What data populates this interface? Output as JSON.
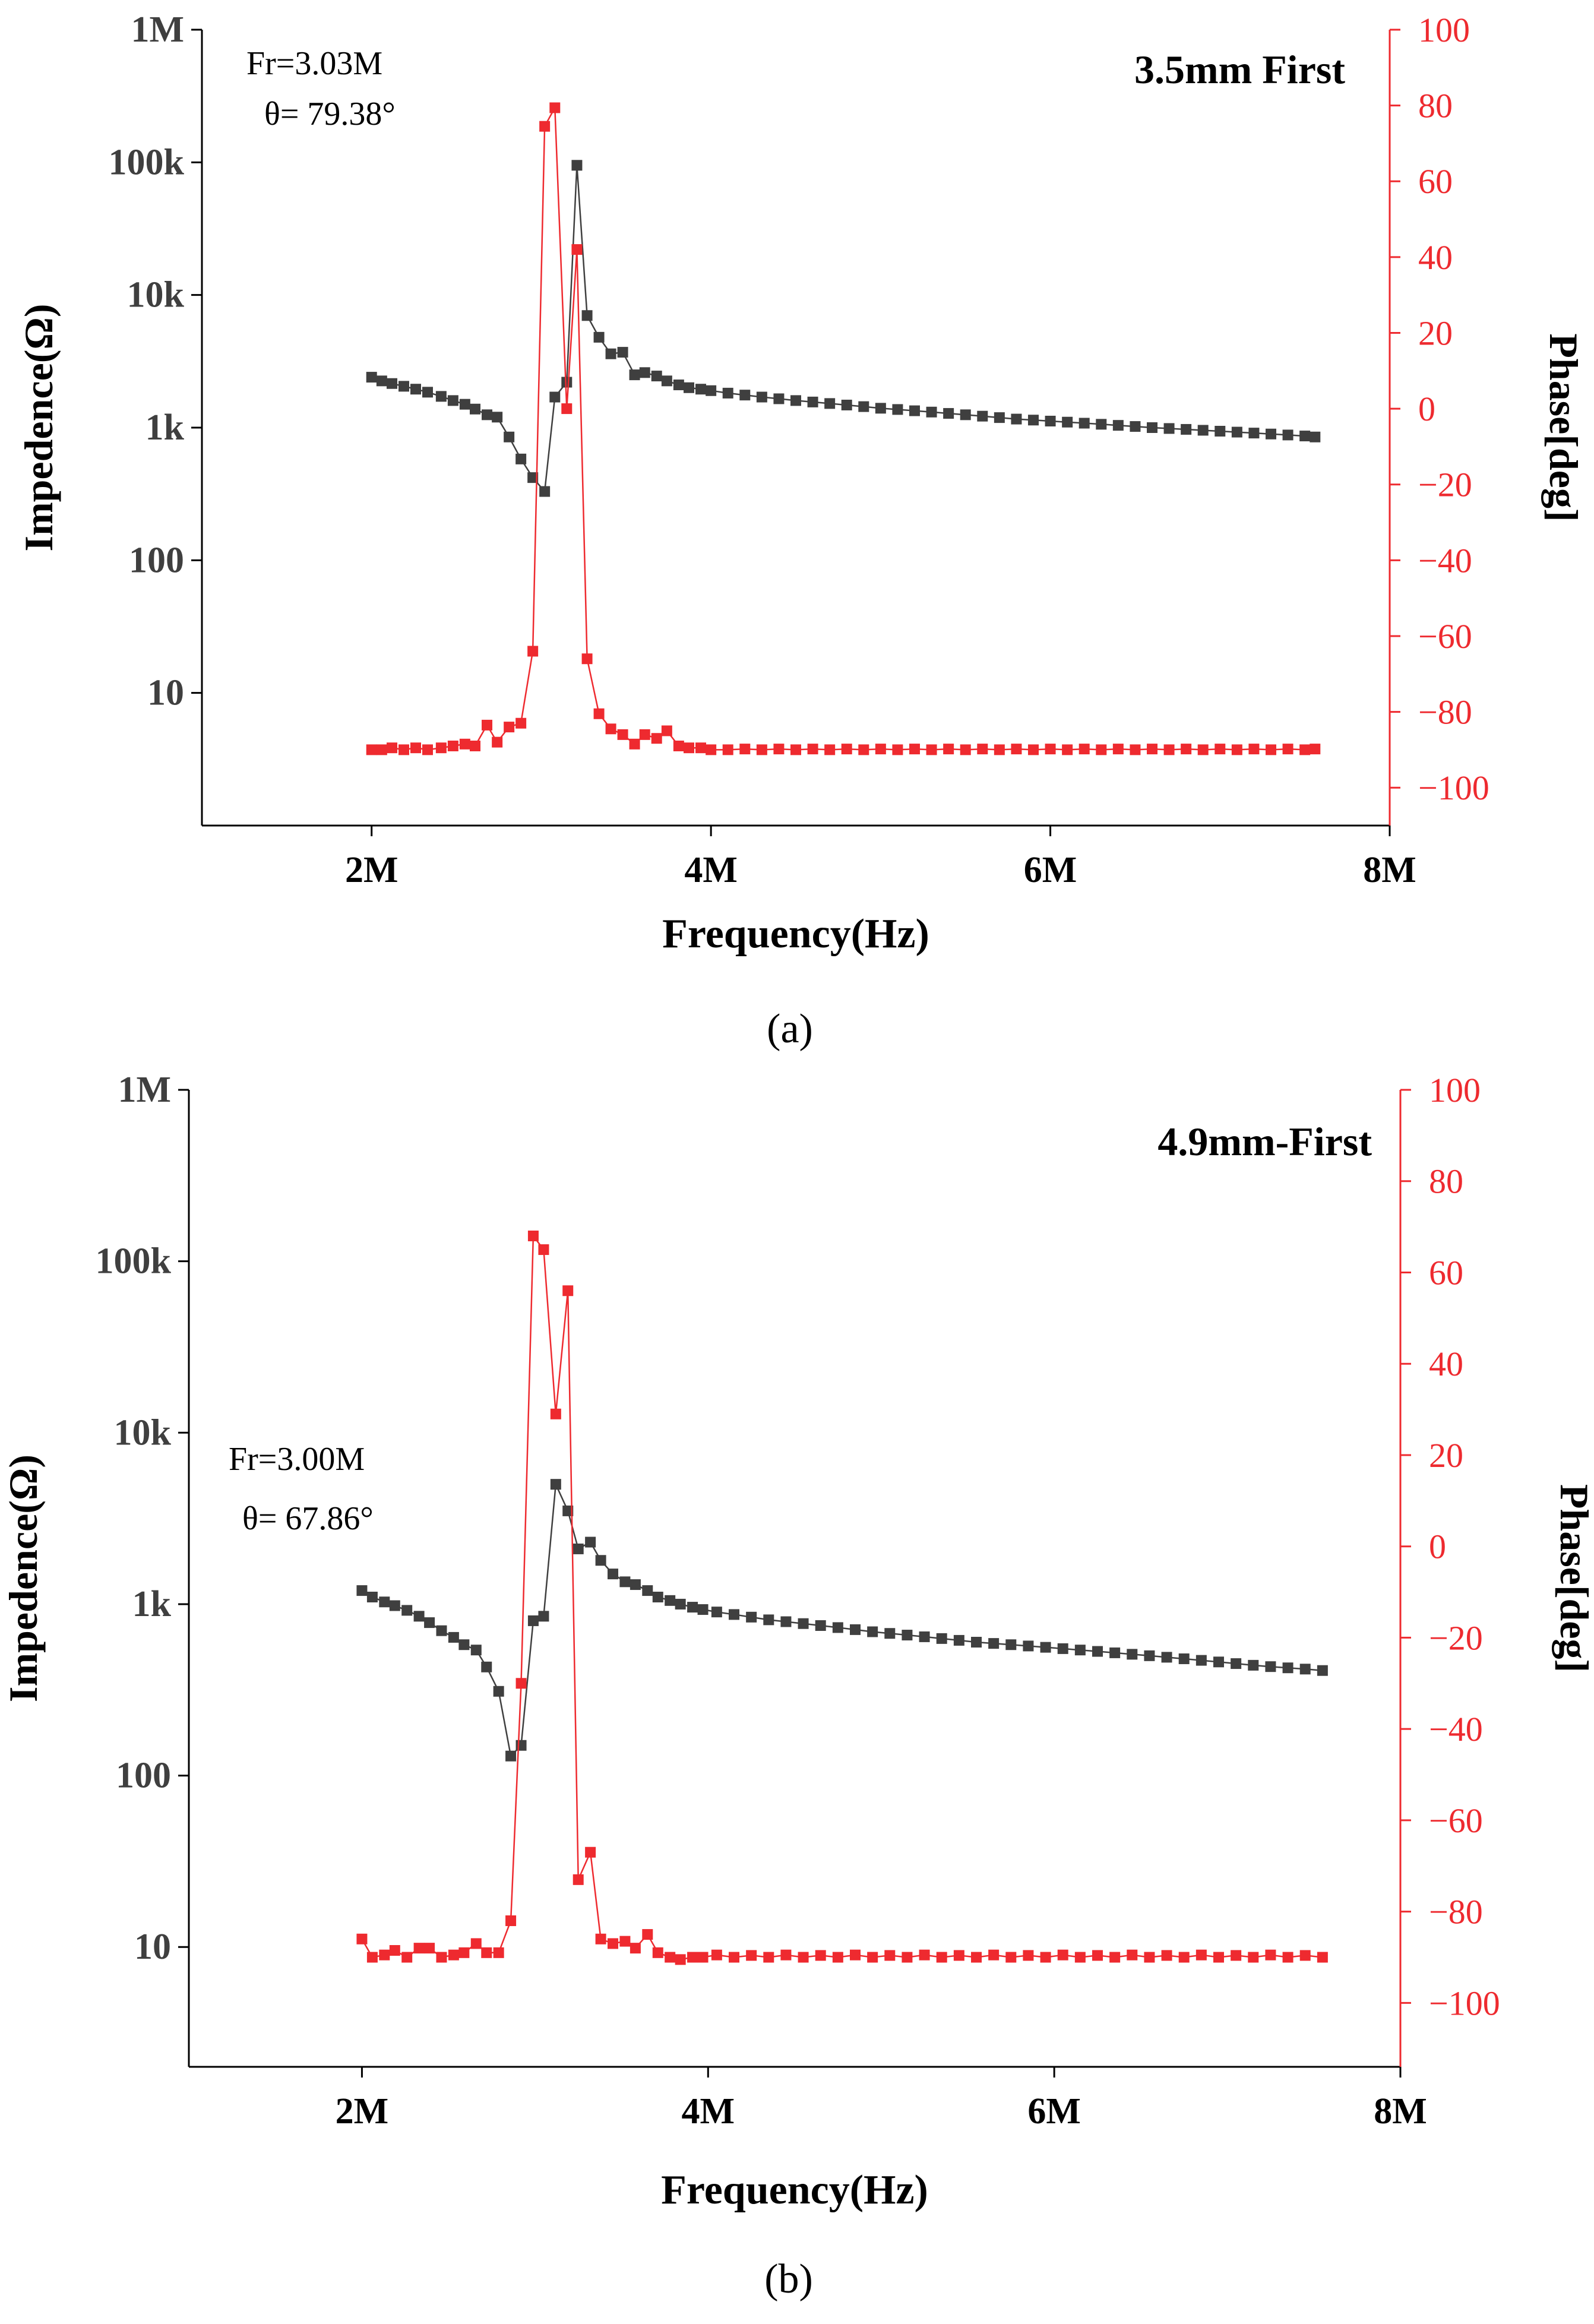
{
  "colors": {
    "impedance": "#3f3f3f",
    "phase": "#ee2a2f",
    "axis": "#000000"
  },
  "chart_data": [
    {
      "type": "line",
      "panel_label": "(a)",
      "title": "3.5mm First",
      "annotation": {
        "line1": "Fr=3.03M",
        "line2": "θ= 79.38°"
      },
      "xlabel": "Frequency(Hz)",
      "ylabel_left": "Impedence(Ω)",
      "ylabel_right": "Phase[deg]",
      "xlim": [
        1000000,
        8000000
      ],
      "x_ticks": [
        {
          "value": 2000000,
          "label": "2M"
        },
        {
          "value": 4000000,
          "label": "4M"
        },
        {
          "value": 6000000,
          "label": "6M"
        },
        {
          "value": 8000000,
          "label": "8M"
        }
      ],
      "y_left_scale": "log",
      "y_left_lim": [
        1,
        1000000
      ],
      "y_left_ticks": [
        {
          "value": 10,
          "label": "10"
        },
        {
          "value": 100,
          "label": "100"
        },
        {
          "value": 1000,
          "label": "1k"
        },
        {
          "value": 10000,
          "label": "10k"
        },
        {
          "value": 100000,
          "label": "100k"
        },
        {
          "value": 1000000,
          "label": "1M"
        }
      ],
      "y_right_lim": [
        -110,
        100
      ],
      "y_right_ticks": [
        {
          "value": 100,
          "label": "100"
        },
        {
          "value": 80,
          "label": "80"
        },
        {
          "value": 60,
          "label": "60"
        },
        {
          "value": 40,
          "label": "40"
        },
        {
          "value": 20,
          "label": "20"
        },
        {
          "value": 0,
          "label": "0"
        },
        {
          "value": -20,
          "label": "−20"
        },
        {
          "value": -40,
          "label": "−40"
        },
        {
          "value": -60,
          "label": "−60"
        },
        {
          "value": -80,
          "label": "−80"
        },
        {
          "value": -100,
          "label": "−100"
        }
      ],
      "series": [
        {
          "name": "Impedance",
          "axis": "left",
          "x": [
            2000000,
            2060000,
            2120000,
            2190000,
            2260000,
            2330000,
            2410000,
            2480000,
            2550000,
            2610000,
            2680000,
            2740000,
            2810000,
            2880000,
            2950000,
            3020000,
            3080000,
            3150000,
            3210000,
            3270000,
            3340000,
            3410000,
            3480000,
            3550000,
            3610000,
            3680000,
            3740000,
            3810000,
            3870000,
            3940000,
            4000000,
            4100000,
            4200000,
            4300000,
            4400000,
            4500000,
            4600000,
            4700000,
            4800000,
            4900000,
            5000000,
            5100000,
            5200000,
            5300000,
            5400000,
            5500000,
            5600000,
            5700000,
            5800000,
            5900000,
            6000000,
            6100000,
            6200000,
            6300000,
            6400000,
            6500000,
            6600000,
            6700000,
            6800000,
            6900000,
            7000000,
            7100000,
            7200000,
            7300000,
            7400000,
            7500000,
            7560000
          ],
          "values": [
            2400,
            2250,
            2150,
            2050,
            1950,
            1850,
            1720,
            1600,
            1500,
            1380,
            1250,
            1200,
            850,
            580,
            420,
            330,
            1700,
            2200,
            95000,
            7000,
            4800,
            3600,
            3700,
            2500,
            2600,
            2450,
            2250,
            2100,
            2000,
            1950,
            1900,
            1820,
            1760,
            1700,
            1650,
            1600,
            1560,
            1520,
            1480,
            1440,
            1400,
            1370,
            1340,
            1310,
            1280,
            1250,
            1220,
            1190,
            1160,
            1140,
            1120,
            1100,
            1080,
            1060,
            1040,
            1020,
            1000,
            985,
            970,
            955,
            940,
            925,
            910,
            895,
            880,
            865,
            850
          ]
        },
        {
          "name": "Phase",
          "axis": "right",
          "x": [
            2000000,
            2060000,
            2120000,
            2190000,
            2260000,
            2330000,
            2410000,
            2480000,
            2550000,
            2610000,
            2680000,
            2740000,
            2810000,
            2880000,
            2950000,
            3020000,
            3080000,
            3150000,
            3210000,
            3270000,
            3340000,
            3410000,
            3480000,
            3550000,
            3610000,
            3680000,
            3740000,
            3810000,
            3870000,
            3940000,
            4000000,
            4100000,
            4200000,
            4300000,
            4400000,
            4500000,
            4600000,
            4700000,
            4800000,
            4900000,
            5000000,
            5100000,
            5200000,
            5300000,
            5400000,
            5500000,
            5600000,
            5700000,
            5800000,
            5900000,
            6000000,
            6100000,
            6200000,
            6300000,
            6400000,
            6500000,
            6600000,
            6700000,
            6800000,
            6900000,
            7000000,
            7100000,
            7200000,
            7300000,
            7400000,
            7500000,
            7560000
          ],
          "values": [
            -90,
            -90,
            -89.5,
            -90,
            -89.5,
            -90,
            -89.5,
            -89,
            -88.5,
            -89,
            -83.5,
            -88,
            -84,
            -83,
            -64,
            74.5,
            79.4,
            0,
            42,
            -66,
            -80.5,
            -84.5,
            -86,
            -88.5,
            -86,
            -87,
            -85,
            -89,
            -89.5,
            -89.5,
            -90,
            -90,
            -89.8,
            -90,
            -89.8,
            -90,
            -89.8,
            -90,
            -89.8,
            -90,
            -89.8,
            -90,
            -89.8,
            -90,
            -89.8,
            -90,
            -89.8,
            -90,
            -89.8,
            -90,
            -89.8,
            -90,
            -89.8,
            -90,
            -89.8,
            -90,
            -89.8,
            -90,
            -89.8,
            -90,
            -89.8,
            -90,
            -89.8,
            -90,
            -89.8,
            -90,
            -89.8
          ]
        }
      ]
    },
    {
      "type": "line",
      "panel_label": "(b)",
      "title": "4.9mm-First",
      "annotation": {
        "line1": "Fr=3.00M",
        "line2": "θ= 67.86°"
      },
      "xlabel": "Frequency(Hz)",
      "ylabel_left": "Impedence(Ω)",
      "ylabel_right": "Phase[deg]",
      "xlim": [
        1000000,
        8000000
      ],
      "x_ticks": [
        {
          "value": 2000000,
          "label": "2M"
        },
        {
          "value": 4000000,
          "label": "4M"
        },
        {
          "value": 6000000,
          "label": "6M"
        },
        {
          "value": 8000000,
          "label": "8M"
        }
      ],
      "y_left_scale": "log",
      "y_left_lim": [
        2,
        1000000
      ],
      "y_left_ticks": [
        {
          "value": 10,
          "label": "10"
        },
        {
          "value": 100,
          "label": "100"
        },
        {
          "value": 1000,
          "label": "1k"
        },
        {
          "value": 10000,
          "label": "10k"
        },
        {
          "value": 100000,
          "label": "100k"
        },
        {
          "value": 1000000,
          "label": "1M"
        }
      ],
      "y_right_lim": [
        -114,
        100
      ],
      "y_right_ticks": [
        {
          "value": 100,
          "label": "100"
        },
        {
          "value": 80,
          "label": "80"
        },
        {
          "value": 60,
          "label": "60"
        },
        {
          "value": 40,
          "label": "40"
        },
        {
          "value": 20,
          "label": "20"
        },
        {
          "value": 0,
          "label": "0"
        },
        {
          "value": -20,
          "label": "−20"
        },
        {
          "value": -40,
          "label": "−40"
        },
        {
          "value": -60,
          "label": "−60"
        },
        {
          "value": -80,
          "label": "−80"
        },
        {
          "value": -100,
          "label": "−100"
        }
      ],
      "series": [
        {
          "name": "Impedance",
          "axis": "left",
          "x": [
            2000000,
            2060000,
            2130000,
            2190000,
            2260000,
            2330000,
            2390000,
            2460000,
            2530000,
            2590000,
            2660000,
            2720000,
            2790000,
            2860000,
            2920000,
            2990000,
            3050000,
            3120000,
            3190000,
            3250000,
            3320000,
            3380000,
            3450000,
            3520000,
            3580000,
            3650000,
            3710000,
            3780000,
            3840000,
            3910000,
            3970000,
            4050000,
            4150000,
            4250000,
            4350000,
            4450000,
            4550000,
            4650000,
            4750000,
            4850000,
            4950000,
            5050000,
            5150000,
            5250000,
            5350000,
            5450000,
            5550000,
            5650000,
            5750000,
            5850000,
            5950000,
            6050000,
            6150000,
            6250000,
            6350000,
            6450000,
            6550000,
            6650000,
            6750000,
            6850000,
            6950000,
            7050000,
            7150000,
            7250000,
            7350000,
            7450000,
            7550000
          ],
          "values": [
            1200,
            1100,
            1030,
            980,
            920,
            850,
            780,
            700,
            640,
            580,
            540,
            430,
            310,
            130,
            150,
            800,
            850,
            5000,
            3500,
            2100,
            2300,
            1800,
            1500,
            1350,
            1300,
            1200,
            1100,
            1050,
            1000,
            960,
            930,
            900,
            870,
            840,
            810,
            790,
            770,
            750,
            730,
            710,
            690,
            675,
            660,
            645,
            630,
            615,
            600,
            590,
            580,
            570,
            560,
            550,
            540,
            530,
            520,
            510,
            500,
            490,
            480,
            470,
            460,
            450,
            440,
            432,
            425,
            418,
            410
          ]
        },
        {
          "name": "Phase",
          "axis": "right",
          "x": [
            2000000,
            2060000,
            2130000,
            2190000,
            2260000,
            2330000,
            2390000,
            2460000,
            2530000,
            2590000,
            2660000,
            2720000,
            2790000,
            2860000,
            2920000,
            2990000,
            3050000,
            3120000,
            3190000,
            3250000,
            3320000,
            3380000,
            3450000,
            3520000,
            3580000,
            3650000,
            3710000,
            3780000,
            3840000,
            3910000,
            3970000,
            4050000,
            4150000,
            4250000,
            4350000,
            4450000,
            4550000,
            4650000,
            4750000,
            4850000,
            4950000,
            5050000,
            5150000,
            5250000,
            5350000,
            5450000,
            5550000,
            5650000,
            5750000,
            5850000,
            5950000,
            6050000,
            6150000,
            6250000,
            6350000,
            6450000,
            6550000,
            6650000,
            6750000,
            6850000,
            6950000,
            7050000,
            7150000,
            7250000,
            7350000,
            7450000,
            7550000
          ],
          "values": [
            -86,
            -90,
            -89.5,
            -88.5,
            -90,
            -88,
            -88,
            -90,
            -89.5,
            -89,
            -87,
            -89,
            -89,
            -82,
            -30,
            68,
            65,
            29,
            56,
            -73,
            -67,
            -86,
            -87,
            -86.5,
            -88,
            -85,
            -89,
            -90,
            -90.5,
            -90,
            -90,
            -89.5,
            -90,
            -89.6,
            -90,
            -89.5,
            -90,
            -89.6,
            -90,
            -89.5,
            -90,
            -89.6,
            -90,
            -89.5,
            -90,
            -89.6,
            -90,
            -89.5,
            -90,
            -89.6,
            -90,
            -89.5,
            -90,
            -89.6,
            -90,
            -89.5,
            -90,
            -89.6,
            -90,
            -89.5,
            -90,
            -89.6,
            -90,
            -89.5,
            -90,
            -89.6,
            -90
          ]
        }
      ]
    }
  ]
}
